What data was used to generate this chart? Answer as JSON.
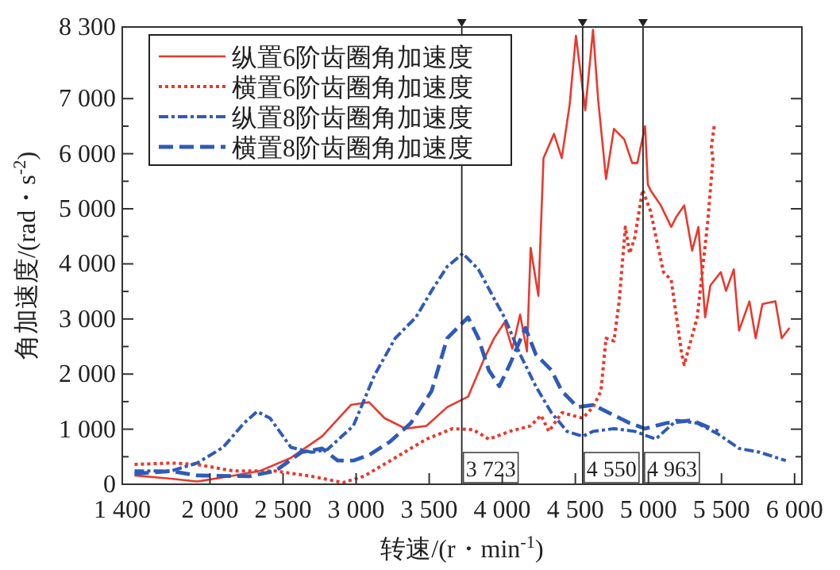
{
  "chart_data": {
    "type": "line",
    "xlabel": "转速/(r・min$^{-1}$)",
    "ylabel": "角加速度/(rad・s$^{-2}$)",
    "xlim": [
      1400,
      6050
    ],
    "ylim": [
      0,
      8300
    ],
    "xticks": [
      {
        "value": 1400,
        "label": "1 400"
      },
      {
        "value": 2000,
        "label": "2 000"
      },
      {
        "value": 2500,
        "label": "2 500"
      },
      {
        "value": 3000,
        "label": "3 000"
      },
      {
        "value": 3500,
        "label": "3 500"
      },
      {
        "value": 4000,
        "label": "4 000"
      },
      {
        "value": 4500,
        "label": "4 500"
      },
      {
        "value": 5000,
        "label": "5 000"
      },
      {
        "value": 5500,
        "label": "5 500"
      },
      {
        "value": 6000,
        "label": "6 000"
      }
    ],
    "yticks": [
      0,
      {
        "value": 1000,
        "label": "1 000"
      },
      {
        "value": 2000,
        "label": "2 000"
      },
      {
        "value": 3000,
        "label": "3 000"
      },
      {
        "value": 4000,
        "label": "4 000"
      },
      {
        "value": 5000,
        "label": "5 000"
      },
      {
        "value": 6000,
        "label": "6 000"
      },
      {
        "value": 7000,
        "label": "7 000"
      },
      {
        "value": 8300,
        "label": "8 300"
      }
    ],
    "grid": false,
    "legend": "top left",
    "ref_lines": [
      {
        "axis": "x",
        "value": 3723,
        "label": "3 723"
      },
      {
        "axis": "x",
        "value": 4550,
        "label": "4 550"
      },
      {
        "axis": "x",
        "value": 4963,
        "label": "4 963"
      }
    ],
    "series": [
      {
        "name": "纵置6阶齿圈角加速度",
        "color": "#e8392d",
        "line_style": "solid",
        "x": [
          1484,
          1734,
          1912,
          2126,
          2340,
          2554,
          2767,
          2964,
          3088,
          3195,
          3338,
          3481,
          3623,
          3766,
          3873,
          3944,
          4015,
          4069,
          4122,
          4169,
          4194,
          4247,
          4282,
          4354,
          4407,
          4461,
          4504,
          4568,
          4621,
          4656,
          4710,
          4764,
          4835,
          4889,
          4924,
          4977,
          4996,
          5014,
          5085,
          5156,
          5192,
          5245,
          5299,
          5342,
          5388,
          5424,
          5495,
          5531,
          5584,
          5620,
          5691,
          5734,
          5780,
          5869,
          5912,
          5965
        ],
        "values": [
          160,
          100,
          50,
          140,
          240,
          480,
          870,
          1440,
          1490,
          1200,
          1010,
          1060,
          1400,
          1590,
          2260,
          2650,
          2940,
          2460,
          3080,
          2410,
          4290,
          3420,
          5920,
          6360,
          5920,
          6890,
          8140,
          6790,
          8250,
          6980,
          5540,
          6450,
          6260,
          5830,
          5830,
          6500,
          5440,
          5340,
          5060,
          4670,
          4860,
          5060,
          4240,
          4670,
          3030,
          3610,
          3850,
          3510,
          3900,
          2790,
          3320,
          2650,
          3270,
          3320,
          2650,
          2840
        ]
      },
      {
        "name": "横置6阶齿圈角加速度",
        "color": "#e8392d",
        "line_style": "dotted",
        "x": [
          1484,
          1734,
          1912,
          2162,
          2447,
          2696,
          2910,
          3053,
          3267,
          3481,
          3659,
          3801,
          3908,
          4051,
          4194,
          4265,
          4319,
          4408,
          4550,
          4621,
          4675,
          4710,
          4764,
          4800,
          4842,
          4871,
          4907,
          4960,
          5014,
          5103,
          5156,
          5228,
          5245,
          5334,
          5406,
          5442,
          5430,
          5450
        ],
        "values": [
          360,
          385,
          360,
          240,
          240,
          145,
          30,
          145,
          480,
          820,
          1010,
          990,
          820,
          960,
          1060,
          1250,
          960,
          1300,
          1200,
          1400,
          1690,
          2650,
          2600,
          3320,
          4670,
          4190,
          4480,
          5340,
          4960,
          3850,
          3710,
          2360,
          2170,
          3030,
          4770,
          5920,
          6100,
          6500
        ]
      },
      {
        "name": "纵置8阶齿圈角加速度",
        "color": "#2f5bb7",
        "line_style": "dashdot",
        "x": [
          1484,
          1734,
          1912,
          2090,
          2233,
          2322,
          2411,
          2554,
          2696,
          2803,
          2981,
          3124,
          3267,
          3409,
          3516,
          3623,
          3730,
          3837,
          3944,
          4015,
          4122,
          4229,
          4336,
          4443,
          4550,
          4621,
          4764,
          4907,
          5050,
          5192,
          5334,
          5477,
          5620,
          5762,
          5940
        ],
        "values": [
          240,
          240,
          385,
          670,
          1110,
          1320,
          1200,
          670,
          580,
          630,
          1060,
          1970,
          2650,
          3030,
          3510,
          3950,
          4190,
          3900,
          3370,
          3030,
          2360,
          1780,
          1300,
          960,
          870,
          960,
          1010,
          960,
          820,
          1160,
          1110,
          910,
          650,
          580,
          430
        ]
      },
      {
        "name": "横置8阶齿圈角加速度",
        "color": "#2f5bb7",
        "line_style": "dashed",
        "x": [
          1484,
          1734,
          1912,
          2268,
          2447,
          2625,
          2767,
          2874,
          2981,
          3088,
          3231,
          3374,
          3516,
          3623,
          3694,
          3766,
          3837,
          3908,
          3980,
          4051,
          4158,
          4229,
          4336,
          4408,
          4515,
          4621,
          4728,
          4871,
          4978,
          5121,
          5299,
          5477
        ],
        "values": [
          190,
          240,
          160,
          145,
          240,
          580,
          650,
          430,
          430,
          530,
          770,
          1110,
          1690,
          2650,
          2840,
          3030,
          2650,
          2070,
          1780,
          2170,
          2840,
          2360,
          2070,
          1690,
          1400,
          1440,
          1300,
          1110,
          1010,
          1110,
          1160,
          960
        ]
      }
    ]
  }
}
